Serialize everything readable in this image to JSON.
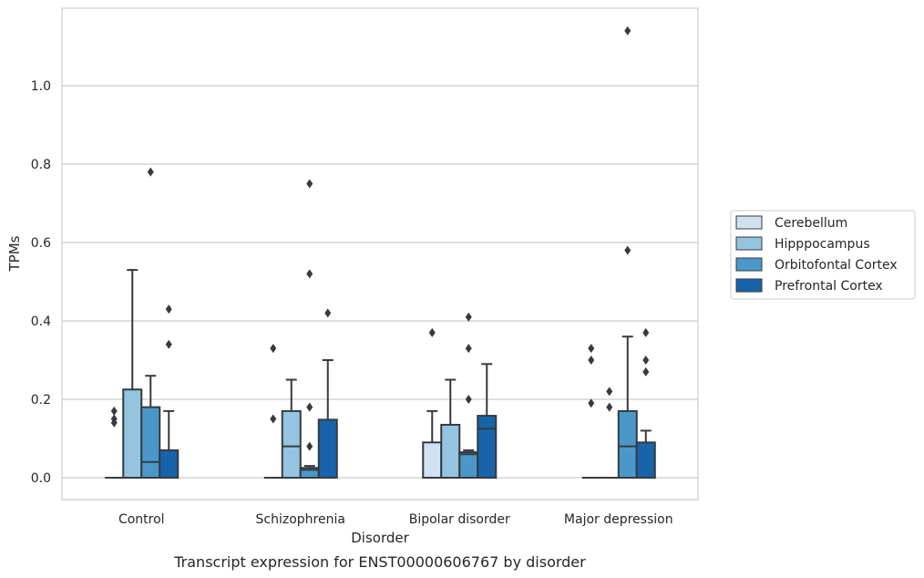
{
  "chart_data": {
    "type": "box",
    "title": "",
    "caption": "Transcript expression for ENST00000606767 by disorder",
    "xlabel": "Disorder",
    "ylabel": "TPMs",
    "ylim": [
      -0.055,
      1.2
    ],
    "yticks": [
      0.0,
      0.2,
      0.4,
      0.6,
      0.8,
      1.0
    ],
    "ytick_labels": [
      "0.0",
      "0.2",
      "0.4",
      "0.6",
      "0.8",
      "1.0"
    ],
    "grid": "horizontal",
    "legend_position": "right",
    "categories": [
      "Control",
      "Schizophrenia",
      "Bipolar disorder",
      "Major depression"
    ],
    "series": [
      {
        "name": "Cerebellum",
        "color": "#d0e1f2",
        "boxes": [
          {
            "q1": 0,
            "median": 0,
            "q3": 0,
            "whisker_low": 0,
            "whisker_high": 0,
            "outliers": [
              0.17,
              0.15,
              0.14
            ]
          },
          {
            "q1": 0,
            "median": 0,
            "q3": 0,
            "whisker_low": 0,
            "whisker_high": 0,
            "outliers": [
              0.33,
              0.15
            ]
          },
          {
            "q1": 0,
            "median": 0,
            "q3": 0.09,
            "whisker_low": 0,
            "whisker_high": 0.17,
            "outliers": [
              0.37
            ]
          },
          {
            "q1": 0,
            "median": 0,
            "q3": 0,
            "whisker_low": 0,
            "whisker_high": 0,
            "outliers": [
              0.33,
              0.3,
              0.19
            ]
          }
        ]
      },
      {
        "name": "Hipppocampus",
        "color": "#94c4df",
        "boxes": [
          {
            "q1": 0,
            "median": 0,
            "q3": 0.225,
            "whisker_low": 0,
            "whisker_high": 0.53,
            "outliers": []
          },
          {
            "q1": 0,
            "median": 0.08,
            "q3": 0.17,
            "whisker_low": 0,
            "whisker_high": 0.25,
            "outliers": []
          },
          {
            "q1": 0,
            "median": 0,
            "q3": 0.135,
            "whisker_low": 0,
            "whisker_high": 0.25,
            "outliers": []
          },
          {
            "q1": 0,
            "median": 0,
            "q3": 0,
            "whisker_low": 0,
            "whisker_high": 0,
            "outliers": [
              0.22,
              0.18
            ]
          }
        ]
      },
      {
        "name": "Orbitofontal Cortex",
        "color": "#4a98c9",
        "boxes": [
          {
            "q1": 0,
            "median": 0.04,
            "q3": 0.18,
            "whisker_low": 0,
            "whisker_high": 0.26,
            "outliers": [
              0.78
            ]
          },
          {
            "q1": 0,
            "median": 0.02,
            "q3": 0.025,
            "whisker_low": 0,
            "whisker_high": 0.03,
            "outliers": [
              0.75,
              0.52,
              0.18,
              0.08
            ]
          },
          {
            "q1": 0,
            "median": 0.06,
            "q3": 0.065,
            "whisker_low": 0,
            "whisker_high": 0.07,
            "outliers": [
              0.41,
              0.33,
              0.2
            ]
          },
          {
            "q1": 0,
            "median": 0.08,
            "q3": 0.17,
            "whisker_low": 0,
            "whisker_high": 0.36,
            "outliers": [
              1.14,
              0.58
            ]
          }
        ]
      },
      {
        "name": "Prefrontal Cortex",
        "color": "#1764ab",
        "boxes": [
          {
            "q1": 0,
            "median": 0,
            "q3": 0.07,
            "whisker_low": 0,
            "whisker_high": 0.17,
            "outliers": [
              0.43,
              0.34
            ]
          },
          {
            "q1": 0,
            "median": 0,
            "q3": 0.148,
            "whisker_low": 0,
            "whisker_high": 0.3,
            "outliers": [
              0.42
            ]
          },
          {
            "q1": 0,
            "median": 0.125,
            "q3": 0.158,
            "whisker_low": 0,
            "whisker_high": 0.29,
            "outliers": []
          },
          {
            "q1": 0,
            "median": 0,
            "q3": 0.09,
            "whisker_low": 0,
            "whisker_high": 0.12,
            "outliers": [
              0.37,
              0.3,
              0.27
            ]
          }
        ]
      }
    ]
  }
}
